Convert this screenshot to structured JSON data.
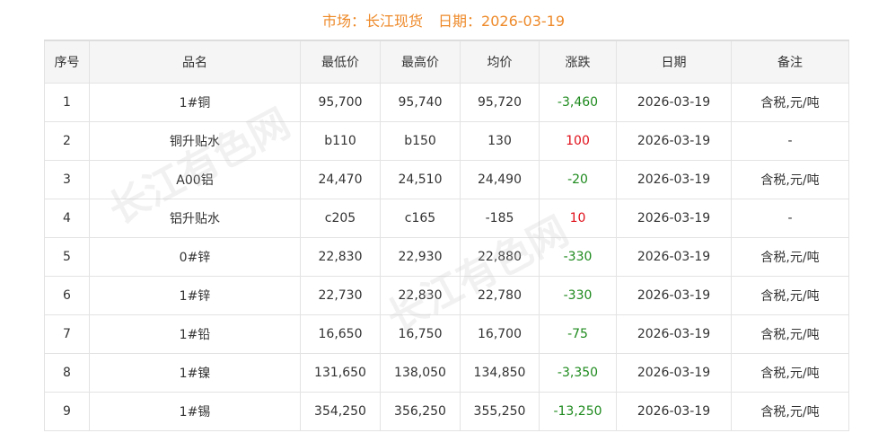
{
  "header": {
    "market_label": "市场：长江现货",
    "date_label": "日期：2026-03-19"
  },
  "watermark": "长江有色网",
  "colors": {
    "title": "#ee8a2a",
    "down": "#1e8a1e",
    "up": "#e0101a"
  },
  "columns": [
    "序号",
    "品名",
    "最低价",
    "最高价",
    "均价",
    "涨跌",
    "日期",
    "备注"
  ],
  "rows": [
    {
      "no": "1",
      "name": "1#铜",
      "low": "95,700",
      "high": "95,740",
      "avg": "95,720",
      "change": "-3,460",
      "dir": "down",
      "date": "2026-03-19",
      "note": "含税,元/吨"
    },
    {
      "no": "2",
      "name": "铜升贴水",
      "low": "b110",
      "high": "b150",
      "avg": "130",
      "change": "100",
      "dir": "up",
      "date": "2026-03-19",
      "note": "-"
    },
    {
      "no": "3",
      "name": "A00铝",
      "low": "24,470",
      "high": "24,510",
      "avg": "24,490",
      "change": "-20",
      "dir": "down",
      "date": "2026-03-19",
      "note": "含税,元/吨"
    },
    {
      "no": "4",
      "name": "铝升贴水",
      "low": "c205",
      "high": "c165",
      "avg": "-185",
      "change": "10",
      "dir": "up",
      "date": "2026-03-19",
      "note": "-"
    },
    {
      "no": "5",
      "name": "0#锌",
      "low": "22,830",
      "high": "22,930",
      "avg": "22,880",
      "change": "-330",
      "dir": "down",
      "date": "2026-03-19",
      "note": "含税,元/吨"
    },
    {
      "no": "6",
      "name": "1#锌",
      "low": "22,730",
      "high": "22,830",
      "avg": "22,780",
      "change": "-330",
      "dir": "down",
      "date": "2026-03-19",
      "note": "含税,元/吨"
    },
    {
      "no": "7",
      "name": "1#铅",
      "low": "16,650",
      "high": "16,750",
      "avg": "16,700",
      "change": "-75",
      "dir": "down",
      "date": "2026-03-19",
      "note": "含税,元/吨"
    },
    {
      "no": "8",
      "name": "1#镍",
      "low": "131,650",
      "high": "138,050",
      "avg": "134,850",
      "change": "-3,350",
      "dir": "down",
      "date": "2026-03-19",
      "note": "含税,元/吨"
    },
    {
      "no": "9",
      "name": "1#锡",
      "low": "354,250",
      "high": "356,250",
      "avg": "355,250",
      "change": "-13,250",
      "dir": "down",
      "date": "2026-03-19",
      "note": "含税,元/吨"
    }
  ]
}
